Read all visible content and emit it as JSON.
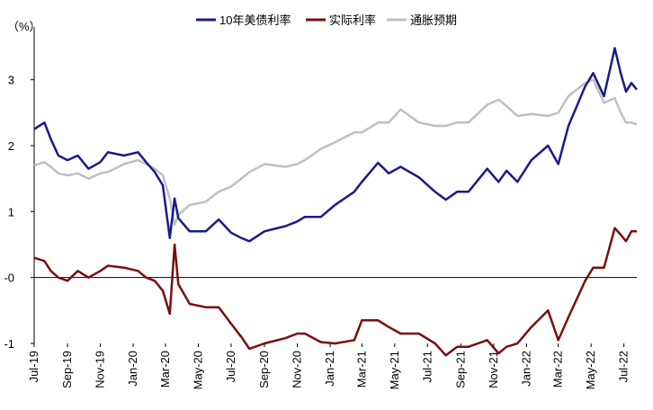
{
  "chart_data": {
    "type": "line",
    "unit_label": "（%）",
    "ylim": [
      -1,
      3.8
    ],
    "y_ticks": [
      {
        "value": 3,
        "label": "3"
      },
      {
        "value": 2,
        "label": "2"
      },
      {
        "value": 1,
        "label": "1"
      },
      {
        "value": 0,
        "label": "-0"
      },
      {
        "value": -1,
        "label": "-1"
      }
    ],
    "x_range": [
      "2019-07-01",
      "2022-07-25"
    ],
    "x_ticks": [
      {
        "date": "2019-07-01",
        "label": "Jul-19"
      },
      {
        "date": "2019-09-01",
        "label": "Sep-19"
      },
      {
        "date": "2019-11-01",
        "label": "Nov-19"
      },
      {
        "date": "2020-01-01",
        "label": "Jan-20"
      },
      {
        "date": "2020-03-01",
        "label": "Mar-20"
      },
      {
        "date": "2020-05-01",
        "label": "May-20"
      },
      {
        "date": "2020-07-01",
        "label": "Jul-20"
      },
      {
        "date": "2020-09-01",
        "label": "Sep-20"
      },
      {
        "date": "2020-11-01",
        "label": "Nov-20"
      },
      {
        "date": "2021-01-01",
        "label": "Jan-21"
      },
      {
        "date": "2021-03-01",
        "label": "Mar-21"
      },
      {
        "date": "2021-05-01",
        "label": "May-21"
      },
      {
        "date": "2021-07-01",
        "label": "Jul-21"
      },
      {
        "date": "2021-09-01",
        "label": "Sep-21"
      },
      {
        "date": "2021-11-01",
        "label": "Nov-21"
      },
      {
        "date": "2022-01-01",
        "label": "Jan-22"
      },
      {
        "date": "2022-03-01",
        "label": "Mar-22"
      },
      {
        "date": "2022-05-01",
        "label": "May-22"
      },
      {
        "date": "2022-07-01",
        "label": "Jul-22"
      }
    ],
    "grid": false,
    "legend_position": "top",
    "series": [
      {
        "name": "10年美债利率",
        "color": "#1a1a8c",
        "points": [
          [
            "2019-07-01",
            2.25
          ],
          [
            "2019-07-20",
            2.35
          ],
          [
            "2019-08-01",
            2.1
          ],
          [
            "2019-08-15",
            1.85
          ],
          [
            "2019-09-01",
            1.78
          ],
          [
            "2019-09-20",
            1.85
          ],
          [
            "2019-10-10",
            1.65
          ],
          [
            "2019-11-01",
            1.75
          ],
          [
            "2019-11-15",
            1.9
          ],
          [
            "2019-12-15",
            1.85
          ],
          [
            "2020-01-10",
            1.9
          ],
          [
            "2020-01-25",
            1.75
          ],
          [
            "2020-02-10",
            1.6
          ],
          [
            "2020-02-25",
            1.4
          ],
          [
            "2020-03-09",
            0.6
          ],
          [
            "2020-03-18",
            1.2
          ],
          [
            "2020-03-25",
            0.9
          ],
          [
            "2020-04-15",
            0.7
          ],
          [
            "2020-05-15",
            0.7
          ],
          [
            "2020-06-08",
            0.88
          ],
          [
            "2020-07-01",
            0.68
          ],
          [
            "2020-07-20",
            0.6
          ],
          [
            "2020-08-04",
            0.55
          ],
          [
            "2020-09-01",
            0.7
          ],
          [
            "2020-10-10",
            0.78
          ],
          [
            "2020-11-01",
            0.85
          ],
          [
            "2020-11-15",
            0.92
          ],
          [
            "2020-12-15",
            0.92
          ],
          [
            "2021-01-10",
            1.1
          ],
          [
            "2021-02-15",
            1.3
          ],
          [
            "2021-03-01",
            1.45
          ],
          [
            "2021-03-31",
            1.74
          ],
          [
            "2021-04-20",
            1.58
          ],
          [
            "2021-05-12",
            1.68
          ],
          [
            "2021-06-15",
            1.52
          ],
          [
            "2021-07-15",
            1.3
          ],
          [
            "2021-08-04",
            1.18
          ],
          [
            "2021-08-25",
            1.3
          ],
          [
            "2021-09-15",
            1.3
          ],
          [
            "2021-10-20",
            1.65
          ],
          [
            "2021-11-10",
            1.45
          ],
          [
            "2021-11-25",
            1.62
          ],
          [
            "2021-12-15",
            1.45
          ],
          [
            "2022-01-10",
            1.78
          ],
          [
            "2022-02-10",
            2.0
          ],
          [
            "2022-03-01",
            1.72
          ],
          [
            "2022-03-20",
            2.3
          ],
          [
            "2022-04-20",
            2.9
          ],
          [
            "2022-05-05",
            3.1
          ],
          [
            "2022-05-25",
            2.75
          ],
          [
            "2022-06-14",
            3.48
          ],
          [
            "2022-06-25",
            3.1
          ],
          [
            "2022-07-05",
            2.82
          ],
          [
            "2022-07-15",
            2.95
          ],
          [
            "2022-07-25",
            2.85
          ]
        ]
      },
      {
        "name": "实际利率",
        "color": "#7a0f0f",
        "points": [
          [
            "2019-07-01",
            0.3
          ],
          [
            "2019-07-20",
            0.25
          ],
          [
            "2019-08-01",
            0.1
          ],
          [
            "2019-08-15",
            0.0
          ],
          [
            "2019-09-01",
            -0.05
          ],
          [
            "2019-09-20",
            0.1
          ],
          [
            "2019-10-10",
            0.0
          ],
          [
            "2019-11-01",
            0.1
          ],
          [
            "2019-11-15",
            0.18
          ],
          [
            "2019-12-15",
            0.15
          ],
          [
            "2020-01-10",
            0.1
          ],
          [
            "2020-01-25",
            0.0
          ],
          [
            "2020-02-10",
            -0.05
          ],
          [
            "2020-02-25",
            -0.2
          ],
          [
            "2020-03-09",
            -0.55
          ],
          [
            "2020-03-18",
            0.5
          ],
          [
            "2020-03-25",
            -0.1
          ],
          [
            "2020-04-15",
            -0.4
          ],
          [
            "2020-05-15",
            -0.45
          ],
          [
            "2020-06-08",
            -0.45
          ],
          [
            "2020-07-01",
            -0.7
          ],
          [
            "2020-07-20",
            -0.9
          ],
          [
            "2020-08-04",
            -1.08
          ],
          [
            "2020-09-01",
            -1.0
          ],
          [
            "2020-10-10",
            -0.92
          ],
          [
            "2020-11-01",
            -0.85
          ],
          [
            "2020-11-15",
            -0.85
          ],
          [
            "2020-12-15",
            -0.98
          ],
          [
            "2021-01-10",
            -1.0
          ],
          [
            "2021-02-15",
            -0.95
          ],
          [
            "2021-03-01",
            -0.65
          ],
          [
            "2021-03-31",
            -0.65
          ],
          [
            "2021-04-20",
            -0.75
          ],
          [
            "2021-05-12",
            -0.85
          ],
          [
            "2021-06-15",
            -0.85
          ],
          [
            "2021-07-15",
            -1.0
          ],
          [
            "2021-08-04",
            -1.18
          ],
          [
            "2021-08-25",
            -1.05
          ],
          [
            "2021-09-15",
            -1.05
          ],
          [
            "2021-10-20",
            -0.95
          ],
          [
            "2021-11-10",
            -1.15
          ],
          [
            "2021-11-25",
            -1.05
          ],
          [
            "2021-12-15",
            -1.0
          ],
          [
            "2022-01-10",
            -0.75
          ],
          [
            "2022-02-10",
            -0.5
          ],
          [
            "2022-03-01",
            -0.95
          ],
          [
            "2022-03-20",
            -0.6
          ],
          [
            "2022-04-20",
            -0.05
          ],
          [
            "2022-05-05",
            0.15
          ],
          [
            "2022-05-25",
            0.15
          ],
          [
            "2022-06-14",
            0.75
          ],
          [
            "2022-06-25",
            0.65
          ],
          [
            "2022-07-05",
            0.55
          ],
          [
            "2022-07-15",
            0.7
          ],
          [
            "2022-07-25",
            0.7
          ]
        ]
      },
      {
        "name": "通胀预期",
        "color": "#c0c0c0",
        "points": [
          [
            "2019-07-01",
            1.7
          ],
          [
            "2019-07-20",
            1.75
          ],
          [
            "2019-08-01",
            1.68
          ],
          [
            "2019-08-15",
            1.58
          ],
          [
            "2019-09-01",
            1.55
          ],
          [
            "2019-09-20",
            1.58
          ],
          [
            "2019-10-10",
            1.5
          ],
          [
            "2019-11-01",
            1.58
          ],
          [
            "2019-11-15",
            1.6
          ],
          [
            "2019-12-15",
            1.72
          ],
          [
            "2020-01-10",
            1.78
          ],
          [
            "2020-01-25",
            1.72
          ],
          [
            "2020-02-10",
            1.65
          ],
          [
            "2020-02-25",
            1.55
          ],
          [
            "2020-03-09",
            1.2
          ],
          [
            "2020-03-18",
            0.8
          ],
          [
            "2020-03-25",
            0.95
          ],
          [
            "2020-04-15",
            1.1
          ],
          [
            "2020-05-15",
            1.15
          ],
          [
            "2020-06-08",
            1.3
          ],
          [
            "2020-07-01",
            1.38
          ],
          [
            "2020-07-20",
            1.5
          ],
          [
            "2020-08-04",
            1.6
          ],
          [
            "2020-09-01",
            1.72
          ],
          [
            "2020-10-10",
            1.68
          ],
          [
            "2020-11-01",
            1.72
          ],
          [
            "2020-11-15",
            1.78
          ],
          [
            "2020-12-15",
            1.95
          ],
          [
            "2021-01-10",
            2.05
          ],
          [
            "2021-02-15",
            2.2
          ],
          [
            "2021-03-01",
            2.2
          ],
          [
            "2021-03-31",
            2.35
          ],
          [
            "2021-04-20",
            2.35
          ],
          [
            "2021-05-12",
            2.55
          ],
          [
            "2021-06-15",
            2.35
          ],
          [
            "2021-07-15",
            2.3
          ],
          [
            "2021-08-04",
            2.3
          ],
          [
            "2021-08-25",
            2.35
          ],
          [
            "2021-09-15",
            2.35
          ],
          [
            "2021-10-20",
            2.62
          ],
          [
            "2021-11-10",
            2.7
          ],
          [
            "2021-11-25",
            2.6
          ],
          [
            "2021-12-15",
            2.45
          ],
          [
            "2022-01-10",
            2.48
          ],
          [
            "2022-02-10",
            2.45
          ],
          [
            "2022-03-01",
            2.5
          ],
          [
            "2022-03-20",
            2.75
          ],
          [
            "2022-04-20",
            2.95
          ],
          [
            "2022-05-05",
            3.0
          ],
          [
            "2022-05-25",
            2.65
          ],
          [
            "2022-06-14",
            2.72
          ],
          [
            "2022-06-25",
            2.5
          ],
          [
            "2022-07-05",
            2.35
          ],
          [
            "2022-07-15",
            2.35
          ],
          [
            "2022-07-25",
            2.32
          ]
        ]
      }
    ]
  }
}
